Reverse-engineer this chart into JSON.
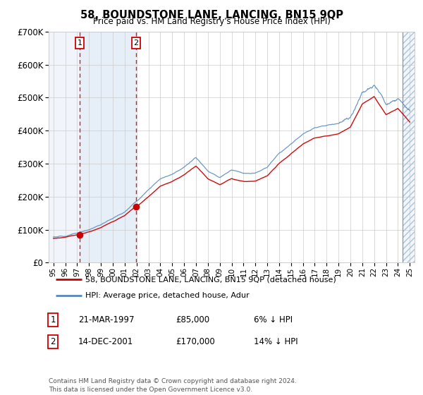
{
  "title": "58, BOUNDSTONE LANE, LANCING, BN15 9QP",
  "subtitle": "Price paid vs. HM Land Registry's House Price Index (HPI)",
  "legend_line1": "58, BOUNDSTONE LANE, LANCING, BN15 9QP (detached house)",
  "legend_line2": "HPI: Average price, detached house, Adur",
  "sale1_label": "1",
  "sale1_date": "21-MAR-1997",
  "sale1_price": "£85,000",
  "sale1_hpi": "6% ↓ HPI",
  "sale1_year": 1997.22,
  "sale1_value": 85000,
  "sale2_label": "2",
  "sale2_date": "14-DEC-2001",
  "sale2_price": "£170,000",
  "sale2_hpi": "14% ↓ HPI",
  "sale2_year": 2001.96,
  "sale2_value": 170000,
  "footer": "Contains HM Land Registry data © Crown copyright and database right 2024.\nThis data is licensed under the Open Government Licence v3.0.",
  "ylim": [
    0,
    700000
  ],
  "xlim_start": 1994.6,
  "xlim_end": 2025.4,
  "line_color_red": "#cc0000",
  "line_color_blue": "#5588bb",
  "shade_color": "#dce8f5",
  "background_color": "#ffffff",
  "grid_color": "#cccccc",
  "hatch_end_start": 2024.42
}
